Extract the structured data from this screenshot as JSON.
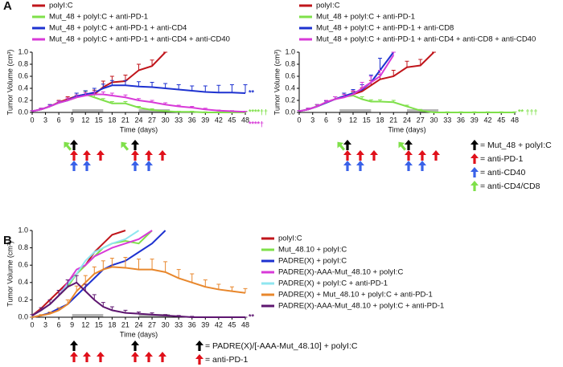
{
  "chart_data": [
    {
      "type": "line",
      "panel": "A",
      "xlabel": "Time (days)",
      "ylabel": "Tumor Volume (cm³)",
      "xlim": [
        0,
        48
      ],
      "xticks": [
        0,
        3,
        6,
        9,
        12,
        15,
        18,
        21,
        24,
        27,
        30,
        33,
        36,
        39,
        42,
        45,
        48
      ],
      "ylim": [
        0,
        1
      ],
      "yticks": [
        {
          "value": 0,
          "label": "0.0"
        },
        0.2,
        0.4,
        0.6,
        0.8,
        {
          "value": 1,
          "label": "1.0"
        }
      ],
      "treatment_periods": [
        [
          9,
          16
        ],
        [
          24,
          31
        ]
      ],
      "x": [
        0,
        2,
        4,
        6,
        8,
        10,
        12,
        14,
        16,
        18,
        21,
        24,
        27,
        30,
        33,
        36,
        39,
        42,
        45,
        48
      ],
      "series": [
        {
          "name": "polyI:C",
          "color": "#c0151b",
          "values": [
            0.02,
            0.05,
            0.1,
            0.17,
            0.22,
            0.27,
            0.3,
            0.3,
            0.42,
            0.5,
            0.52,
            0.7,
            0.77,
            1.0,
            null,
            null,
            null,
            null,
            null,
            null
          ],
          "errors": [
            0.01,
            0.02,
            0.03,
            0.03,
            0.04,
            0.05,
            0.06,
            0.07,
            0.1,
            0.1,
            0.1,
            0.1,
            0.1,
            0,
            null,
            null,
            null,
            null,
            null,
            null
          ]
        },
        {
          "name": "Mut_48 + polyI:C + anti-PD-1",
          "color": "#7fe04a",
          "values": [
            0.02,
            0.05,
            0.1,
            0.16,
            0.2,
            0.25,
            0.3,
            0.25,
            0.2,
            0.15,
            0.15,
            0.08,
            0.04,
            0.02,
            0.01,
            0.01,
            0,
            0,
            0,
            0
          ],
          "errors": [
            0.01,
            0.02,
            0.02,
            0.03,
            0.04,
            0.04,
            0.05,
            0.04,
            0.03,
            0.03,
            0.03,
            0.02,
            0.02,
            0.01,
            0.01,
            0.01,
            0.01,
            0.01,
            0.01,
            0.01
          ],
          "annotation": "****††"
        },
        {
          "name": "Mut_48 + polyI:C + anti-PD-1 + anti-CD4",
          "color": "#1e32d0",
          "values": [
            0.02,
            0.05,
            0.1,
            0.16,
            0.2,
            0.27,
            0.3,
            0.33,
            0.4,
            0.45,
            0.45,
            0.43,
            0.42,
            0.4,
            0.38,
            0.36,
            0.34,
            0.33,
            0.33,
            0.32
          ],
          "errors": [
            0.01,
            0.02,
            0.03,
            0.03,
            0.04,
            0.05,
            0.06,
            0.07,
            0.07,
            0.08,
            0.08,
            0.08,
            0.08,
            0.08,
            0.08,
            0.08,
            0.1,
            0.12,
            0.13,
            0.14
          ],
          "annotation": "**"
        },
        {
          "name": "Mut_48 + polyI:C + anti-PD-1 + anti-CD4 + anti-CD40",
          "color": "#d83ad8",
          "values": [
            0.02,
            0.05,
            0.1,
            0.16,
            0.2,
            0.25,
            0.28,
            0.3,
            0.3,
            0.28,
            0.25,
            0.2,
            0.17,
            0.13,
            0.1,
            0.08,
            0.05,
            0.03,
            0.02,
            0.01
          ],
          "errors": [
            0.01,
            0.02,
            0.02,
            0.03,
            0.04,
            0.04,
            0.05,
            0.04,
            0.04,
            0.04,
            0.04,
            0.03,
            0.03,
            0.03,
            0.02,
            0.02,
            0.02,
            0.01,
            0.01,
            0.01
          ],
          "annotation": "****†"
        }
      ]
    },
    {
      "type": "line",
      "xlabel": "Time (days)",
      "ylabel": "Tumor Volume (cm³)",
      "xlim": [
        0,
        48
      ],
      "xticks": [
        0,
        3,
        6,
        9,
        12,
        15,
        18,
        21,
        24,
        27,
        30,
        33,
        36,
        39,
        42,
        45,
        48
      ],
      "ylim": [
        0,
        1
      ],
      "yticks": [
        {
          "value": 0,
          "label": "0.0"
        },
        0.2,
        0.4,
        0.6,
        0.8,
        {
          "value": 1,
          "label": "1.0"
        }
      ],
      "treatment_periods": [
        [
          9,
          16
        ],
        [
          24,
          31
        ]
      ],
      "x": [
        0,
        2,
        4,
        6,
        8,
        10,
        12,
        14,
        16,
        18,
        21,
        24,
        27,
        30,
        33,
        36,
        39,
        42,
        45,
        48
      ],
      "series": [
        {
          "name": "polyI:C",
          "color": "#c0151b",
          "values": [
            0.02,
            0.05,
            0.1,
            0.17,
            0.22,
            0.27,
            0.3,
            0.35,
            0.45,
            0.55,
            0.6,
            0.75,
            0.78,
            1.0,
            null,
            null,
            null,
            null,
            null,
            null
          ],
          "errors": [
            0.01,
            0.02,
            0.03,
            0.03,
            0.04,
            0.05,
            0.05,
            0.06,
            0.08,
            0.08,
            0.1,
            0.1,
            0.1,
            0,
            null,
            null,
            null,
            null,
            null,
            null
          ]
        },
        {
          "name": "Mut_48 + polyI:C + anti-PD-1",
          "color": "#7fe04a",
          "values": [
            0.02,
            0.05,
            0.1,
            0.16,
            0.22,
            0.26,
            0.28,
            0.22,
            0.18,
            0.18,
            0.17,
            0.1,
            0.03,
            0,
            0,
            0,
            0,
            0,
            0,
            0
          ],
          "errors": [
            0.01,
            0.02,
            0.02,
            0.03,
            0.04,
            0.04,
            0.05,
            0.04,
            0.03,
            0.03,
            0.03,
            0.02,
            0.02,
            0.01,
            0.01,
            0.01,
            0.01,
            0.01,
            0.01,
            0.01
          ],
          "annotation": "** †††"
        },
        {
          "name": "Mut_48 + polyI:C + anti-PD-1 + anti-CD8",
          "color": "#1e32d0",
          "values": [
            0.02,
            0.05,
            0.1,
            0.16,
            0.22,
            0.27,
            0.32,
            0.38,
            0.5,
            0.7,
            1.0,
            null,
            null,
            null,
            null,
            null,
            null,
            null,
            null,
            null
          ],
          "errors": [
            0.01,
            0.02,
            0.03,
            0.03,
            0.04,
            0.05,
            0.06,
            0.08,
            0.12,
            0.2,
            0,
            null,
            null,
            null,
            null,
            null,
            null,
            null,
            null,
            null
          ]
        },
        {
          "name": "Mut_48 + polyI:C + anti-PD-1 + anti-CD4 + anti-CD8 + anti-CD40",
          "color": "#d83ad8",
          "values": [
            0.02,
            0.05,
            0.1,
            0.17,
            0.22,
            0.25,
            0.3,
            0.4,
            0.5,
            0.6,
            0.95,
            null,
            null,
            null,
            null,
            null,
            null,
            null,
            null,
            null
          ],
          "errors": [
            0.01,
            0.02,
            0.03,
            0.03,
            0.04,
            0.05,
            0.06,
            0.1,
            0.1,
            0.1,
            0.05,
            null,
            null,
            null,
            null,
            null,
            null,
            null,
            null,
            null
          ]
        }
      ],
      "treatment_legend": [
        {
          "label": "= Mut_48 + polyI:C",
          "color": "#000000"
        },
        {
          "label": "= anti-PD-1",
          "color": "#e0101a"
        },
        {
          "label": "= anti-CD40",
          "color": "#3a62e8"
        },
        {
          "label": "= anti-CD4/CD8",
          "color": "#7fe04a"
        }
      ]
    },
    {
      "type": "line",
      "panel": "B",
      "xlabel": "Time (days)",
      "ylabel": "Tumor Volume (cm³)",
      "xlim": [
        0,
        48
      ],
      "xticks": [
        0,
        3,
        6,
        9,
        12,
        15,
        18,
        21,
        24,
        27,
        30,
        33,
        36,
        39,
        42,
        45,
        48
      ],
      "ylim": [
        0,
        1
      ],
      "yticks": [
        {
          "value": 0,
          "label": "0.0"
        },
        0.2,
        0.4,
        0.6,
        0.8,
        {
          "value": 1,
          "label": "1.0"
        }
      ],
      "treatment_periods": [
        [
          9,
          16
        ],
        [
          24,
          31
        ]
      ],
      "x": [
        0,
        2,
        4,
        6,
        8,
        10,
        12,
        14,
        16,
        18,
        21,
        24,
        27,
        30,
        33,
        36,
        39,
        42,
        45,
        48
      ],
      "series": [
        {
          "name": "polyI:C",
          "color": "#c0151b",
          "values": [
            0.02,
            0.1,
            0.2,
            0.3,
            0.4,
            0.5,
            0.6,
            0.75,
            0.85,
            0.95,
            1.0,
            null,
            null,
            null,
            null,
            null,
            null,
            null,
            null,
            null
          ]
        },
        {
          "name": "Mut_48.10 + polyI:C",
          "color": "#7fe04a",
          "values": [
            0.02,
            0.08,
            0.15,
            0.25,
            0.35,
            0.5,
            0.6,
            0.7,
            0.8,
            0.85,
            0.88,
            0.85,
            1.0,
            null,
            null,
            null,
            null,
            null,
            null,
            null
          ]
        },
        {
          "name": "PADRE(X) + polyI:C",
          "color": "#1e32d0",
          "values": [
            0,
            0.02,
            0.05,
            0.1,
            0.15,
            0.25,
            0.35,
            0.45,
            0.55,
            0.6,
            0.65,
            0.75,
            0.85,
            1.0,
            null,
            null,
            null,
            null,
            null,
            null
          ]
        },
        {
          "name": "PADRE(X)-AAA-Mut_48.10 + polyI:C",
          "color": "#d83ad8",
          "values": [
            0.02,
            0.08,
            0.15,
            0.25,
            0.4,
            0.55,
            0.6,
            0.7,
            0.75,
            0.8,
            0.85,
            0.9,
            1.0,
            null,
            null,
            null,
            null,
            null,
            null,
            null
          ]
        },
        {
          "name": "PADRE(X) + polyI:C + anti-PD-1",
          "color": "#8fe6f0",
          "values": [
            0.02,
            0.08,
            0.15,
            0.25,
            0.38,
            0.5,
            0.65,
            0.75,
            0.8,
            0.85,
            0.9,
            1.0,
            null,
            null,
            null,
            null,
            null,
            null,
            null,
            null
          ]
        },
        {
          "name": "PADRE(X) + Mut_48.10 + polyI:C + anti-PD-1",
          "color": "#e8872c",
          "values": [
            0,
            0.02,
            0.04,
            0.08,
            0.15,
            0.3,
            0.4,
            0.5,
            0.55,
            0.58,
            0.57,
            0.55,
            0.55,
            0.52,
            0.45,
            0.4,
            0.35,
            0.32,
            0.3,
            0.28
          ],
          "errors": [
            0,
            0.01,
            0.02,
            0.03,
            0.05,
            0.06,
            0.08,
            0.08,
            0.1,
            0.1,
            0.12,
            0.12,
            0.12,
            0.12,
            0.1,
            0.1,
            0.08,
            0.06,
            0.05,
            0.05
          ]
        },
        {
          "name": "PADRE(X)-AAA-Mut_48.10 + polyI:C + anti-PD-1",
          "color": "#5e1670",
          "values": [
            0.02,
            0.08,
            0.15,
            0.25,
            0.35,
            0.4,
            0.3,
            0.2,
            0.12,
            0.08,
            0.05,
            0.04,
            0.03,
            0.02,
            0.01,
            0,
            0,
            0,
            0,
            0
          ],
          "errors": [
            0.01,
            0.03,
            0.05,
            0.06,
            0.08,
            0.08,
            0.08,
            0.06,
            0.05,
            0.04,
            0.03,
            0.02,
            0.02,
            0.01,
            0.01,
            0.01,
            0,
            0,
            0,
            0
          ],
          "annotation": "**"
        }
      ],
      "treatment_legend": [
        {
          "label": "= PADRE(X)/[-AAA-Mut_48.10] + polyI:C",
          "color": "#000000"
        },
        {
          "label": "= anti-PD-1",
          "color": "#e0101a"
        }
      ]
    }
  ]
}
